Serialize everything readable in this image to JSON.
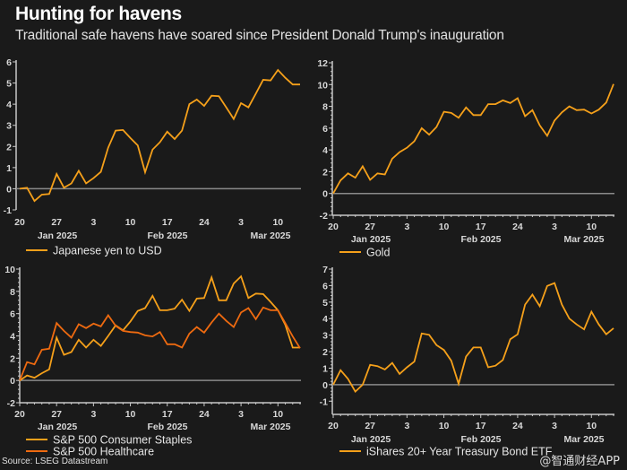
{
  "header": {
    "title": "Hunting for havens",
    "subtitle": "Traditional safe havens have soared since President Donald Trump's inauguration"
  },
  "footer": {
    "source": "Source: LSEG Datastream",
    "watermark": "@智通财经APP"
  },
  "colors": {
    "background": "#1a1a1a",
    "amber": "#f5a01a",
    "orange": "#ee6a10",
    "zero_line": "#8a8a8a",
    "axis": "#c8c8c8"
  },
  "chart_data": [
    {
      "id": "yen",
      "type": "line",
      "title": "",
      "xlabel": "",
      "ylabel": "",
      "x_tick_labels": [
        "20",
        "27",
        "3",
        "10",
        "17",
        "24",
        "3",
        "10"
      ],
      "month_labels": [
        "Jan 2025",
        "Feb 2025",
        "Mar 2025"
      ],
      "yticks": [
        -1,
        0,
        1,
        2,
        3,
        4,
        5,
        6
      ],
      "ylim": [
        -1,
        6
      ],
      "grid": false,
      "legend_position": "bottom-left",
      "series": [
        {
          "name": "Japanese yen to USD",
          "color": "#f5a01a",
          "values": [
            0.0,
            0.05,
            -0.58,
            -0.28,
            -0.25,
            0.7,
            0.05,
            0.25,
            0.85,
            0.25,
            0.5,
            0.8,
            1.95,
            2.75,
            2.78,
            2.4,
            2.05,
            0.78,
            1.85,
            2.2,
            2.7,
            2.35,
            2.75,
            4.0,
            4.22,
            3.92,
            4.4,
            4.38,
            3.85,
            3.3,
            4.05,
            3.85,
            4.5,
            5.15,
            5.12,
            5.62,
            5.25,
            4.93,
            4.93
          ]
        }
      ]
    },
    {
      "id": "gold",
      "type": "line",
      "title": "",
      "xlabel": "",
      "ylabel": "",
      "x_tick_labels": [
        "20",
        "27",
        "3",
        "10",
        "17",
        "24",
        "3",
        "10"
      ],
      "month_labels": [
        "Jan 2025",
        "Feb 2025",
        "Mar 2025"
      ],
      "yticks": [
        -2,
        0,
        2,
        4,
        6,
        8,
        10,
        12
      ],
      "ylim": [
        -2,
        12
      ],
      "grid": false,
      "legend_position": "bottom-left",
      "series": [
        {
          "name": "Gold",
          "color": "#f5a01a",
          "values": [
            0.0,
            1.2,
            1.85,
            1.45,
            2.5,
            1.25,
            1.85,
            1.75,
            3.2,
            3.8,
            4.2,
            4.8,
            6.0,
            5.4,
            6.1,
            7.5,
            7.4,
            6.95,
            7.9,
            7.2,
            7.2,
            8.2,
            8.2,
            8.55,
            8.3,
            8.75,
            7.1,
            7.65,
            6.25,
            5.3,
            6.7,
            7.45,
            8.0,
            7.65,
            7.7,
            7.35,
            7.7,
            8.35,
            10.05
          ]
        }
      ]
    },
    {
      "id": "sp500",
      "type": "line",
      "title": "",
      "xlabel": "",
      "ylabel": "",
      "x_tick_labels": [
        "20",
        "27",
        "3",
        "10",
        "17",
        "24",
        "3",
        "10"
      ],
      "month_labels": [
        "Jan 2025",
        "Feb 2025",
        "Mar 2025"
      ],
      "yticks": [
        -2,
        0,
        2,
        4,
        6,
        8,
        10
      ],
      "ylim": [
        -2,
        10
      ],
      "grid": false,
      "legend_position": "bottom-left",
      "series": [
        {
          "name": "S&P 500 Consumer Staples",
          "color": "#f5a01a",
          "values": [
            0.0,
            0.45,
            0.25,
            0.65,
            1.0,
            3.85,
            2.3,
            2.55,
            3.65,
            2.95,
            3.65,
            3.1,
            4.0,
            4.95,
            4.5,
            5.3,
            6.25,
            6.5,
            7.6,
            6.3,
            6.3,
            6.45,
            7.25,
            6.25,
            7.35,
            7.4,
            9.25,
            7.2,
            7.2,
            8.7,
            9.35,
            7.4,
            7.8,
            7.75,
            7.05,
            6.3,
            5.0,
            2.95,
            2.95
          ]
        },
        {
          "name": "S&P 500 Healthcare",
          "color": "#ee6a10",
          "values": [
            0.0,
            1.65,
            1.45,
            2.75,
            2.85,
            5.15,
            4.45,
            3.85,
            5.05,
            4.7,
            5.1,
            4.85,
            5.85,
            4.9,
            4.45,
            4.35,
            4.3,
            4.05,
            3.95,
            4.35,
            3.25,
            3.25,
            2.95,
            4.2,
            4.8,
            4.3,
            5.2,
            6.0,
            5.35,
            4.8,
            6.1,
            6.5,
            5.5,
            6.55,
            6.3,
            6.3,
            5.15,
            3.95,
            2.9
          ]
        }
      ]
    },
    {
      "id": "bond",
      "type": "line",
      "title": "",
      "xlabel": "",
      "ylabel": "",
      "x_tick_labels": [
        "20",
        "27",
        "3",
        "10",
        "17",
        "24",
        "3",
        "10"
      ],
      "month_labels": [
        "Jan 2025",
        "Feb 2025",
        "Mar 2025"
      ],
      "yticks": [
        -1,
        0,
        1,
        2,
        3,
        4,
        5,
        6,
        7
      ],
      "ylim": [
        -1.8,
        7
      ],
      "grid": false,
      "legend_position": "bottom-left",
      "series": [
        {
          "name": "iShares 20+ Year Treasury Bond ETF",
          "color": "#f5a01a",
          "values": [
            0.0,
            0.88,
            0.35,
            -0.42,
            0.0,
            1.2,
            1.12,
            0.92,
            1.32,
            0.65,
            1.05,
            1.4,
            3.1,
            3.02,
            2.4,
            2.1,
            1.45,
            0.05,
            1.7,
            2.25,
            2.25,
            1.05,
            1.15,
            1.5,
            2.75,
            3.05,
            4.85,
            5.45,
            4.75,
            5.98,
            6.15,
            4.85,
            4.0,
            3.65,
            3.35,
            4.42,
            3.65,
            3.05,
            3.42
          ]
        }
      ]
    }
  ]
}
